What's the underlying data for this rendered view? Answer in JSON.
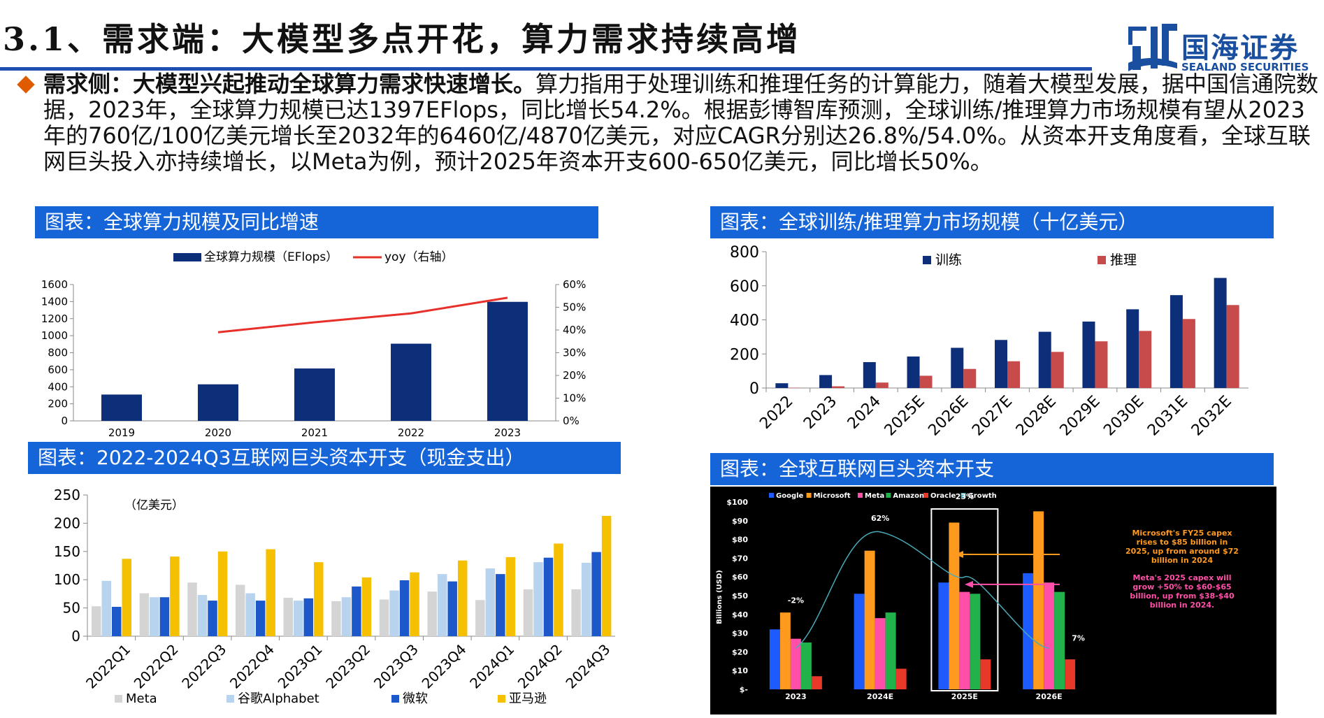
{
  "header": {
    "title": "3.1、需求端：大模型多点开花，算力需求持续高增",
    "logo_name": "国海证券",
    "logo_sub": "SEALAND SECURITIES"
  },
  "paragraph": {
    "lead": "需求侧：大模型兴起推动全球算力需求快速增长。",
    "body": "算力指用于处理训练和推理任务的计算能力，随着大模型发展，据中国信通院数据，2023年，全球算力规模已达1397EFlops，同比增长54.2%。根据彭博智库预测，全球训练/推理算力市场规模有望从2023年的760亿/100亿美元增长至2032年的6460亿/4870亿美元，对应CAGR分别达26.8%/54.0%。从资本开支角度看，全球互联网巨头投入亦持续增长，以Meta为例，预计2025年资本开支600-650亿美元，同比增长50%。"
  },
  "captions": {
    "c1": "图表：全球算力规模及同比增速",
    "c2": "图表：全球训练/推理算力市场规模（十亿美元）",
    "c3": "图表：2022-2024Q3互联网巨头资本开支（现金支出）",
    "c4": "图表：全球互联网巨头资本开支"
  },
  "chart_data": [
    {
      "id": "compute",
      "type": "bar",
      "categories": [
        "2019",
        "2020",
        "2021",
        "2022",
        "2023"
      ],
      "series": [
        {
          "name": "全球算力规模（EFlops）",
          "type": "bar",
          "axis": "left",
          "color": "#0d2f7a",
          "values": [
            309,
            429,
            615,
            906,
            1397
          ]
        },
        {
          "name": "yoy（右轴）",
          "type": "line",
          "axis": "right",
          "color": "#e8302a",
          "values": [
            null,
            0.39,
            0.434,
            0.473,
            0.542
          ]
        }
      ],
      "ylim": [
        0,
        1600
      ],
      "yticks": [
        "0",
        "200",
        "400",
        "600",
        "800",
        "1000",
        "1200",
        "1400",
        "1600"
      ],
      "y2lim": [
        0,
        0.6
      ],
      "y2ticks": [
        "0%",
        "10%",
        "20%",
        "30%",
        "40%",
        "50%",
        "60%"
      ],
      "legend": "top"
    },
    {
      "id": "training_inference",
      "type": "bar",
      "categories": [
        "2022",
        "2023",
        "2024",
        "2025E",
        "2026E",
        "2027E",
        "2028E",
        "2029E",
        "2030E",
        "2031E",
        "2032E"
      ],
      "series": [
        {
          "name": "训练",
          "color": "#0d2f7a",
          "values": [
            28,
            76,
            152,
            185,
            236,
            282,
            330,
            390,
            462,
            545,
            646
          ]
        },
        {
          "name": "推理",
          "color": "#c84b4b",
          "values": [
            2,
            10,
            32,
            72,
            112,
            157,
            212,
            274,
            335,
            405,
            487
          ]
        }
      ],
      "ylim": [
        0,
        800
      ],
      "yticks": [
        "0",
        "200",
        "400",
        "600",
        "800"
      ],
      "legend": "top"
    },
    {
      "id": "capex_quarterly",
      "type": "bar",
      "unit_label": "（亿美元）",
      "categories": [
        "2022Q1",
        "2022Q2",
        "2022Q3",
        "2022Q4",
        "2023Q1",
        "2023Q2",
        "2023Q3",
        "2023Q4",
        "2024Q1",
        "2024Q2",
        "2024Q3"
      ],
      "series": [
        {
          "name": "Meta",
          "color": "#d4d4d4",
          "values": [
            53,
            76,
            95,
            91,
            68,
            62,
            65,
            79,
            64,
            83,
            83
          ]
        },
        {
          "name": "谷歌Alphabet",
          "color": "#b7d3ee",
          "values": [
            98,
            69,
            73,
            76,
            63,
            69,
            81,
            110,
            120,
            131,
            130
          ]
        },
        {
          "name": "微软",
          "color": "#1c58c9",
          "values": [
            52,
            69,
            63,
            63,
            67,
            88,
            99,
            97,
            110,
            139,
            149
          ]
        },
        {
          "name": "亚马逊",
          "color": "#f5c000",
          "values": [
            137,
            141,
            150,
            154,
            131,
            104,
            113,
            134,
            140,
            164,
            213
          ]
        }
      ],
      "ylim": [
        0,
        250
      ],
      "yticks": [
        "0",
        "50",
        "100",
        "150",
        "200",
        "250"
      ],
      "legend": "bottom"
    },
    {
      "id": "capex_annual",
      "type": "bar",
      "ylabel": "Billions (USD)",
      "categories": [
        "2023",
        "2024E",
        "2025E",
        "2026E"
      ],
      "series": [
        {
          "name": "Google",
          "color": "#1e5bff",
          "values": [
            32,
            51,
            57,
            62
          ]
        },
        {
          "name": "Microsoft",
          "color": "#ff9a1f",
          "values": [
            41,
            74,
            89,
            95
          ]
        },
        {
          "name": "Meta",
          "color": "#ff4fa8",
          "values": [
            27,
            38,
            52,
            57
          ]
        },
        {
          "name": "Amazon",
          "color": "#22b24c",
          "values": [
            25,
            41,
            51,
            52
          ]
        },
        {
          "name": "Oracle",
          "color": "#e8382a",
          "values": [
            7,
            11,
            16,
            16
          ]
        },
        {
          "name": "Growth",
          "color": "#49a9b8",
          "type": "line"
        }
      ],
      "growth_labels": [
        "-2%",
        "62%",
        "23%",
        "7%"
      ],
      "ylim": [
        0,
        100
      ],
      "yticks": [
        "$-",
        "$10",
        "$20",
        "$30",
        "$40",
        "$50",
        "$60",
        "$70",
        "$80",
        "$90",
        "$100"
      ],
      "annotations": [
        {
          "text": "Microsoft's FY25 capex rises to $85 billion in 2025, up from around $72 billion in 2024",
          "color": "#ff9a1f"
        },
        {
          "text": "Meta's 2025 capex will grow +50% to $60-$65 billion, up from $38-$40 billion in 2024.",
          "color": "#ff4fa8"
        }
      ],
      "background": "#000000",
      "legend": "top"
    }
  ]
}
